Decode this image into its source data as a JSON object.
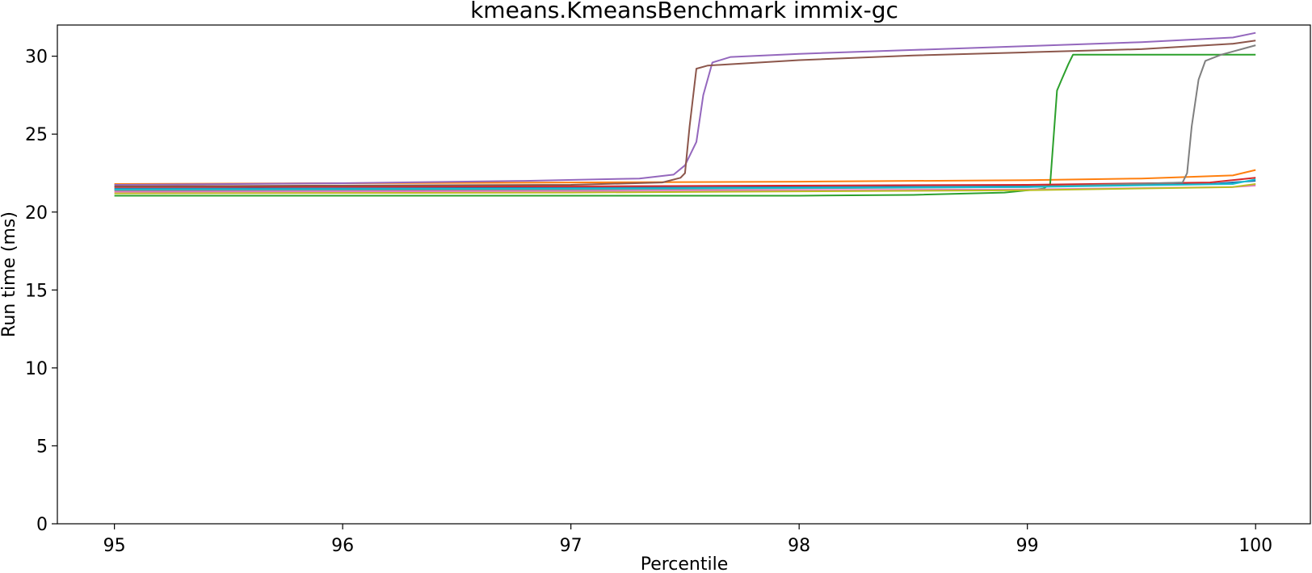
{
  "chart_data": {
    "type": "line",
    "title": "kmeans.KmeansBenchmark immix-gc",
    "xlabel": "Percentile",
    "ylabel": "Run time (ms)",
    "xlim": [
      94.75,
      100.24
    ],
    "ylim": [
      0,
      32
    ],
    "x_ticks": [
      95,
      96,
      97,
      98,
      99,
      100
    ],
    "x_tick_labels": [
      "95",
      "96",
      "97",
      "98",
      "99",
      "100"
    ],
    "y_ticks": [
      0,
      5,
      10,
      15,
      20,
      25,
      30
    ],
    "y_tick_labels": [
      "0",
      "5",
      "10",
      "15",
      "20",
      "25",
      "30"
    ],
    "grid": false,
    "legend": "none",
    "series": [
      {
        "color": "#1f77b4",
        "x": [
          95,
          97,
          99,
          99.8,
          100
        ],
        "y": [
          21.5,
          21.55,
          21.65,
          21.8,
          22.0
        ]
      },
      {
        "color": "#ff7f0e",
        "x": [
          95,
          96,
          97,
          98,
          99,
          99.5,
          99.9,
          100
        ],
        "y": [
          21.8,
          21.85,
          21.9,
          21.95,
          22.05,
          22.15,
          22.35,
          22.7
        ]
      },
      {
        "color": "#2ca02c",
        "x": [
          95,
          98,
          98.5,
          98.9,
          99.07,
          99.1,
          99.13,
          99.15,
          99.18,
          99.2,
          99.5,
          100
        ],
        "y": [
          21.05,
          21.05,
          21.1,
          21.25,
          21.5,
          21.8,
          27.8,
          28.5,
          29.5,
          30.1,
          30.1,
          30.1
        ]
      },
      {
        "color": "#d62728",
        "x": [
          95,
          97,
          99,
          99.8,
          100
        ],
        "y": [
          21.6,
          21.65,
          21.75,
          21.9,
          22.2
        ]
      },
      {
        "color": "#9467bd",
        "x": [
          95,
          96,
          96.8,
          97.3,
          97.45,
          97.5,
          97.55,
          97.58,
          97.62,
          97.7,
          98,
          98.5,
          99,
          99.5,
          99.9,
          100
        ],
        "y": [
          21.75,
          21.85,
          22.0,
          22.15,
          22.4,
          23.0,
          24.5,
          27.5,
          29.6,
          29.95,
          30.15,
          30.4,
          30.65,
          30.9,
          31.2,
          31.5
        ]
      },
      {
        "color": "#8c564b",
        "x": [
          95,
          96,
          97,
          97.4,
          97.48,
          97.5,
          97.52,
          97.55,
          97.6,
          98,
          98.5,
          99,
          99.5,
          99.9,
          100
        ],
        "y": [
          21.65,
          21.7,
          21.75,
          21.9,
          22.2,
          22.5,
          25.5,
          29.2,
          29.4,
          29.75,
          30.05,
          30.25,
          30.45,
          30.8,
          31.0
        ]
      },
      {
        "color": "#e377c2",
        "x": [
          95,
          97,
          99,
          99.9,
          100
        ],
        "y": [
          21.3,
          21.35,
          21.45,
          21.6,
          21.7
        ]
      },
      {
        "color": "#7f7f7f",
        "x": [
          95,
          97,
          99,
          99.68,
          99.7,
          99.72,
          99.75,
          99.78,
          99.85,
          99.95,
          100
        ],
        "y": [
          21.4,
          21.45,
          21.6,
          21.9,
          22.5,
          25.5,
          28.5,
          29.7,
          30.1,
          30.5,
          30.7
        ]
      },
      {
        "color": "#bcbd22",
        "x": [
          95,
          97,
          99,
          99.9,
          100
        ],
        "y": [
          21.2,
          21.25,
          21.4,
          21.6,
          21.8
        ]
      },
      {
        "color": "#17becf",
        "x": [
          95,
          97,
          99,
          99.9,
          100
        ],
        "y": [
          21.45,
          21.5,
          21.6,
          21.8,
          22.1
        ]
      }
    ]
  }
}
